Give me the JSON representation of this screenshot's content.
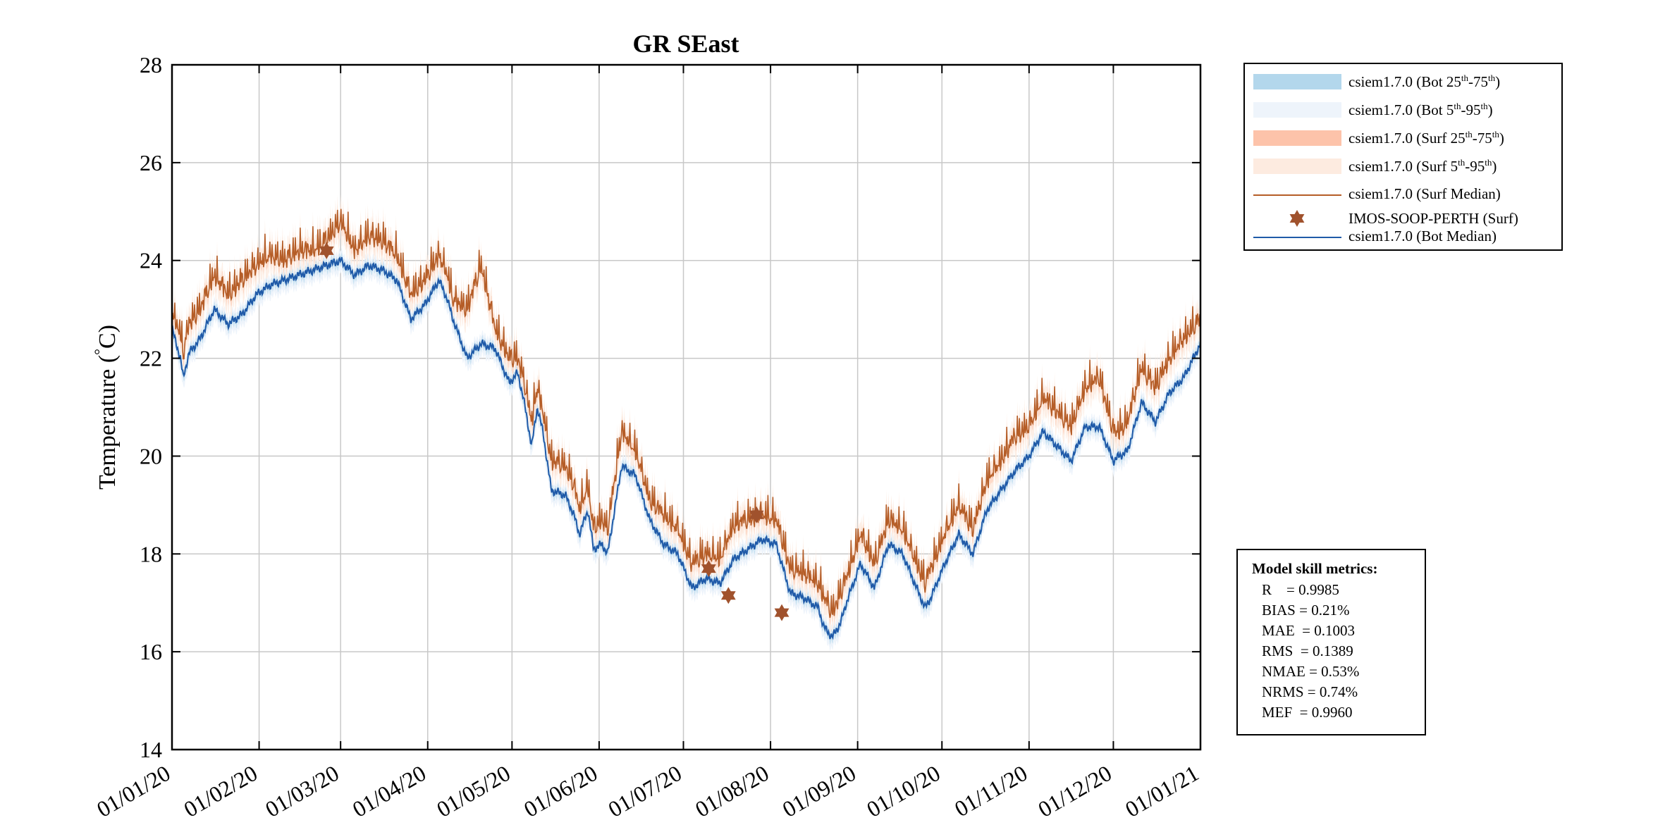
{
  "colors": {
    "bot_iqr": "#b3d7ec",
    "bot_outer": "#eef4fb",
    "surf_iqr": "#fdc3aa",
    "surf_outer": "#fdebe0",
    "surf_median": "#b55d27",
    "obs": "#a0522d",
    "bot_median": "#1f5aa8",
    "grid": "#c8c8c8"
  },
  "legend": {
    "items": [
      {
        "base": "csiem1.7.0 (Bot 25",
        "s1": "th",
        "mid": "-75",
        "s2": "th",
        "end": ")",
        "kind": "swatch",
        "color_key": "bot_iqr"
      },
      {
        "base": "csiem1.7.0 (Bot 5",
        "s1": "th",
        "mid": "-95",
        "s2": "th",
        "end": ")",
        "kind": "swatch",
        "color_key": "bot_outer"
      },
      {
        "base": "csiem1.7.0 (Surf 25",
        "s1": "th",
        "mid": "-75",
        "s2": "th",
        "end": ")",
        "kind": "swatch",
        "color_key": "surf_iqr"
      },
      {
        "base": "csiem1.7.0 (Surf 5",
        "s1": "th",
        "mid": "-95",
        "s2": "th",
        "end": ")",
        "kind": "swatch",
        "color_key": "surf_outer"
      },
      {
        "text": "csiem1.7.0 (Surf Median)",
        "kind": "line",
        "color_key": "surf_median"
      },
      {
        "text": "IMOS-SOOP-PERTH (Surf)",
        "kind": "star",
        "color_key": "obs"
      },
      {
        "text": "csiem1.7.0 (Bot Median)",
        "kind": "line",
        "color_key": "bot_median"
      }
    ]
  },
  "metrics": {
    "title": "Model skill metrics:",
    "lines": [
      "R    = 0.9985",
      "BIAS = 0.21%",
      "MAE  = 0.1003",
      "RMS  = 0.1389",
      "NMAE = 0.53%",
      "NRMS = 0.74%",
      "MEF  = 0.9960"
    ]
  },
  "chart_data": {
    "type": "line",
    "title": "GR SEast",
    "xlabel": "",
    "ylabel_main": "Temperature (",
    "ylabel_deg": "°",
    "ylabel_unit": "C)",
    "ylim": [
      14,
      28
    ],
    "yticks": [
      14,
      16,
      18,
      20,
      22,
      24,
      26,
      28
    ],
    "xlim": [
      0,
      366
    ],
    "xticks": [
      {
        "day": 0,
        "label": "01/01/20"
      },
      {
        "day": 31,
        "label": "01/02/20"
      },
      {
        "day": 60,
        "label": "01/03/20"
      },
      {
        "day": 91,
        "label": "01/04/20"
      },
      {
        "day": 121,
        "label": "01/05/20"
      },
      {
        "day": 152,
        "label": "01/06/20"
      },
      {
        "day": 182,
        "label": "01/07/20"
      },
      {
        "day": 213,
        "label": "01/08/20"
      },
      {
        "day": 244,
        "label": "01/09/20"
      },
      {
        "day": 274,
        "label": "01/10/20"
      },
      {
        "day": 305,
        "label": "01/11/20"
      },
      {
        "day": 335,
        "label": "01/12/20"
      },
      {
        "day": 366,
        "label": "01/01/21"
      }
    ],
    "grid": true,
    "series": [
      {
        "name": "csiem1.7.0 (Bot Median)",
        "x": [
          0,
          3,
          4,
          6,
          10,
          15,
          20,
          25,
          30,
          35,
          40,
          45,
          50,
          55,
          60,
          65,
          70,
          75,
          80,
          85,
          90,
          95,
          98,
          100,
          105,
          110,
          115,
          120,
          123,
          125,
          128,
          130,
          132,
          135,
          140,
          143,
          145,
          148,
          150,
          153,
          155,
          160,
          165,
          170,
          175,
          180,
          185,
          190,
          195,
          200,
          205,
          210,
          215,
          220,
          225,
          230,
          232,
          235,
          238,
          240,
          245,
          250,
          255,
          260,
          265,
          268,
          270,
          275,
          280,
          285,
          290,
          295,
          300,
          305,
          310,
          315,
          320,
          325,
          330,
          335,
          337,
          340,
          345,
          350,
          355,
          360,
          366
        ],
        "values": [
          22.6,
          22.0,
          21.6,
          22.1,
          22.4,
          23.0,
          22.7,
          22.9,
          23.3,
          23.5,
          23.6,
          23.7,
          23.8,
          23.9,
          24.0,
          23.7,
          23.9,
          23.8,
          23.6,
          22.8,
          23.1,
          23.6,
          23.2,
          22.8,
          22.0,
          22.3,
          22.2,
          21.5,
          21.7,
          21.2,
          20.2,
          21.0,
          20.5,
          19.3,
          19.2,
          18.8,
          18.4,
          18.9,
          18.1,
          18.2,
          18.0,
          19.8,
          19.6,
          18.7,
          18.2,
          18.0,
          17.3,
          17.5,
          17.4,
          17.9,
          18.1,
          18.3,
          18.2,
          17.2,
          17.1,
          16.9,
          16.5,
          16.3,
          16.6,
          17.0,
          17.8,
          17.3,
          18.2,
          18.0,
          17.3,
          16.9,
          17.1,
          17.8,
          18.4,
          18.0,
          18.9,
          19.3,
          19.7,
          20.0,
          20.5,
          20.2,
          19.9,
          20.6,
          20.6,
          19.9,
          20.0,
          20.1,
          21.1,
          20.7,
          21.3,
          21.6,
          22.3
        ]
      },
      {
        "name": "csiem1.7.0 (Surf Median)",
        "x": [
          0,
          3,
          4,
          6,
          10,
          15,
          20,
          25,
          30,
          35,
          40,
          45,
          50,
          55,
          60,
          65,
          70,
          75,
          80,
          85,
          90,
          95,
          98,
          100,
          105,
          110,
          115,
          120,
          123,
          125,
          128,
          130,
          132,
          135,
          140,
          143,
          145,
          148,
          150,
          153,
          155,
          160,
          165,
          170,
          175,
          180,
          185,
          190,
          195,
          200,
          205,
          210,
          215,
          220,
          225,
          230,
          232,
          235,
          238,
          240,
          245,
          250,
          255,
          260,
          265,
          268,
          270,
          275,
          280,
          285,
          290,
          295,
          300,
          305,
          310,
          315,
          320,
          325,
          330,
          335,
          337,
          340,
          345,
          350,
          355,
          360,
          366
        ],
        "values": [
          22.7,
          22.3,
          21.9,
          22.5,
          22.8,
          23.5,
          23.1,
          23.4,
          23.7,
          23.9,
          23.8,
          24.0,
          24.0,
          24.2,
          24.6,
          24.0,
          24.3,
          24.2,
          23.9,
          23.1,
          23.4,
          23.9,
          23.5,
          23.0,
          22.8,
          23.7,
          22.4,
          21.8,
          21.8,
          21.4,
          20.5,
          21.2,
          20.7,
          19.7,
          19.6,
          19.2,
          18.7,
          19.2,
          18.3,
          18.5,
          18.3,
          20.3,
          19.9,
          18.9,
          18.6,
          18.3,
          17.6,
          17.8,
          17.7,
          18.4,
          18.5,
          18.6,
          18.5,
          17.5,
          17.4,
          17.2,
          16.9,
          16.6,
          17.0,
          17.3,
          18.2,
          17.6,
          18.5,
          18.3,
          17.6,
          17.2,
          17.5,
          18.2,
          18.8,
          18.3,
          19.3,
          19.7,
          20.2,
          20.4,
          21.0,
          20.7,
          20.4,
          21.2,
          21.4,
          20.3,
          20.3,
          20.5,
          21.6,
          21.2,
          21.8,
          22.2,
          22.6
        ]
      }
    ],
    "observations": {
      "name": "IMOS-SOOP-PERTH (Surf)",
      "x": [
        55,
        191,
        198,
        208,
        217
      ],
      "values": [
        24.2,
        17.7,
        17.15,
        18.8,
        16.8
      ]
    }
  }
}
